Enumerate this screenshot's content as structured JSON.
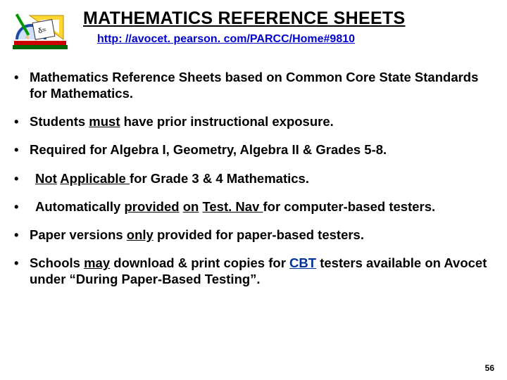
{
  "header": {
    "title": "MATHEMATICS REFERENCE SHEETS",
    "link_text": "http: //avocet. pearson. com/PARCC/Home#9810",
    "link_color": "#0000cc"
  },
  "bullets": [
    {
      "segments": [
        {
          "text": "Mathematics Reference Sheets based on Common  Core State Standards for Mathematics."
        }
      ]
    },
    {
      "segments": [
        {
          "text": "Students "
        },
        {
          "text": "must",
          "underline": true
        },
        {
          "text": " have prior instructional exposure."
        }
      ]
    },
    {
      "segments": [
        {
          "text": "Required for Algebra I, Geometry, Algebra II & Grades 5-8."
        }
      ]
    },
    {
      "indent": true,
      "segments": [
        {
          "text": "Not",
          "underline": true
        },
        {
          "text": " "
        },
        {
          "text": "Applicable ",
          "underline": true
        },
        {
          "text": "for Grade 3 & 4 Mathematics."
        }
      ]
    },
    {
      "indent": true,
      "segments": [
        {
          "text": "Automatically "
        },
        {
          "text": "provided",
          "underline": true
        },
        {
          "text": " "
        },
        {
          "text": "on",
          "underline": true
        },
        {
          "text": " "
        },
        {
          "text": "Test. Nav ",
          "underline": true
        },
        {
          "text": "for computer-based testers."
        }
      ]
    },
    {
      "segments": [
        {
          "text": "Paper versions "
        },
        {
          "text": "only",
          "underline": true
        },
        {
          "text": " provided for paper-based testers."
        }
      ]
    },
    {
      "segments": [
        {
          "text": "Schools "
        },
        {
          "text": "may",
          "underline": true
        },
        {
          "text": " download & print copies for "
        },
        {
          "text": "CBT",
          "cbt": true
        },
        {
          "text": " testers available on Avocet under “During Paper-Based Testing”."
        }
      ]
    }
  ],
  "page_number": "56",
  "icon": {
    "book_color": "#cc0000",
    "protractor_color": "#1d4aa8",
    "triangle_color": "#ffd633",
    "paper_color": "#ffffff",
    "paper_border": "#333333",
    "pencil_color": "#009900"
  }
}
